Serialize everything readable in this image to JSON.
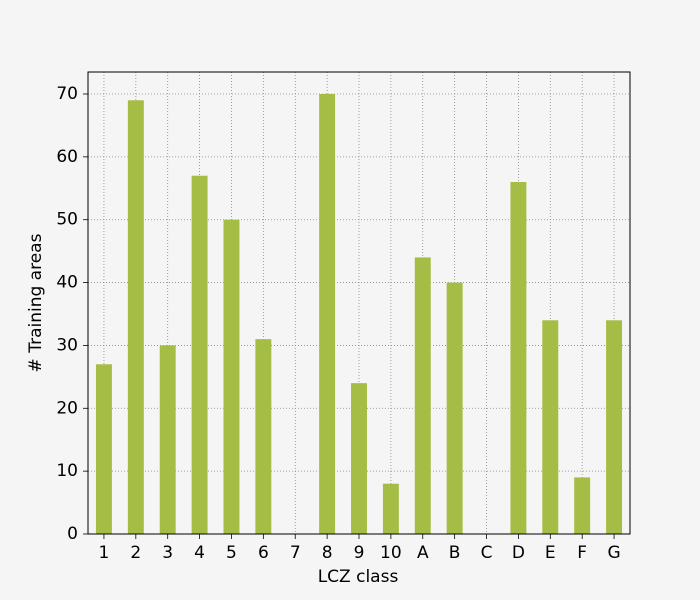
{
  "chart_data": {
    "type": "bar",
    "xlabel": "LCZ class",
    "ylabel": "# Training areas",
    "categories": [
      "1",
      "2",
      "3",
      "4",
      "5",
      "6",
      "7",
      "8",
      "9",
      "10",
      "A",
      "B",
      "C",
      "D",
      "E",
      "F",
      "G"
    ],
    "values": [
      27,
      69,
      30,
      57,
      50,
      31,
      0,
      70,
      24,
      8,
      44,
      40,
      0,
      56,
      34,
      9,
      34
    ],
    "color": "#a5bd45",
    "ylim": [
      0,
      73.5
    ],
    "yticks": [
      0,
      10,
      20,
      30,
      40,
      50,
      60,
      70
    ],
    "grid": true
  }
}
